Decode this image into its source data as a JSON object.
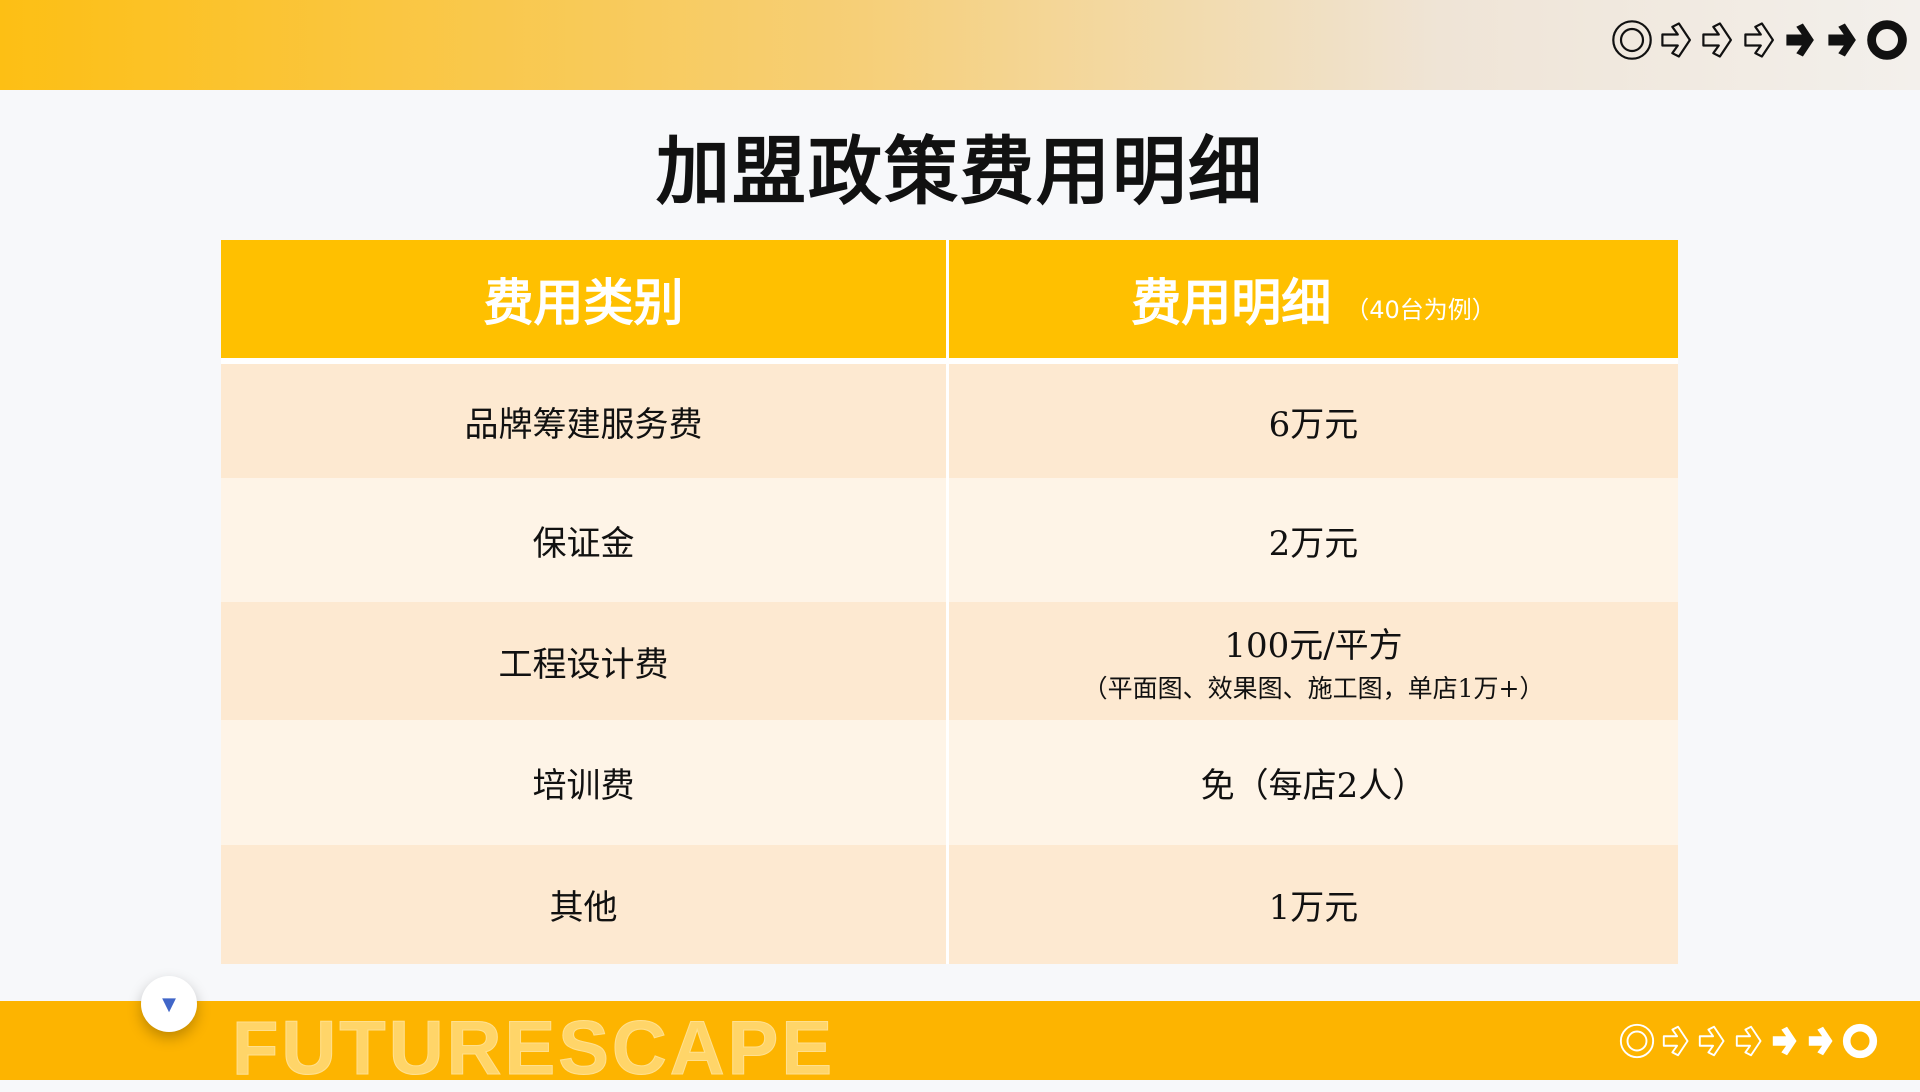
{
  "title": "加盟政策费用明细",
  "table": {
    "headers": [
      "费用类别",
      "费用明细"
    ],
    "header_note": "（40台为例）",
    "rows": [
      {
        "category": "品牌筹建服务费",
        "detail": "6万元",
        "note": ""
      },
      {
        "category": "保证金",
        "detail": "2万元",
        "note": ""
      },
      {
        "category": "工程设计费",
        "detail": "100元/平方",
        "note": "（平面图、效果图、施工图，单店1万+）"
      },
      {
        "category": "培训费",
        "detail": "免（每店2人）",
        "note": ""
      },
      {
        "category": "其他",
        "detail": "1万元",
        "note": ""
      }
    ]
  },
  "footer": {
    "brand": "FUTURESCAPE"
  },
  "colors": {
    "accent": "#ffc000",
    "footer": "#fdb400",
    "row_dark": "#fde9d1",
    "row_light": "#fef4e7"
  },
  "icons": [
    "target-circle-icon",
    "arrow-outline-icon",
    "arrow-outline-icon",
    "arrow-outline-icon",
    "arrow-solid-icon",
    "arrow-solid-icon",
    "ring-solid-icon"
  ]
}
